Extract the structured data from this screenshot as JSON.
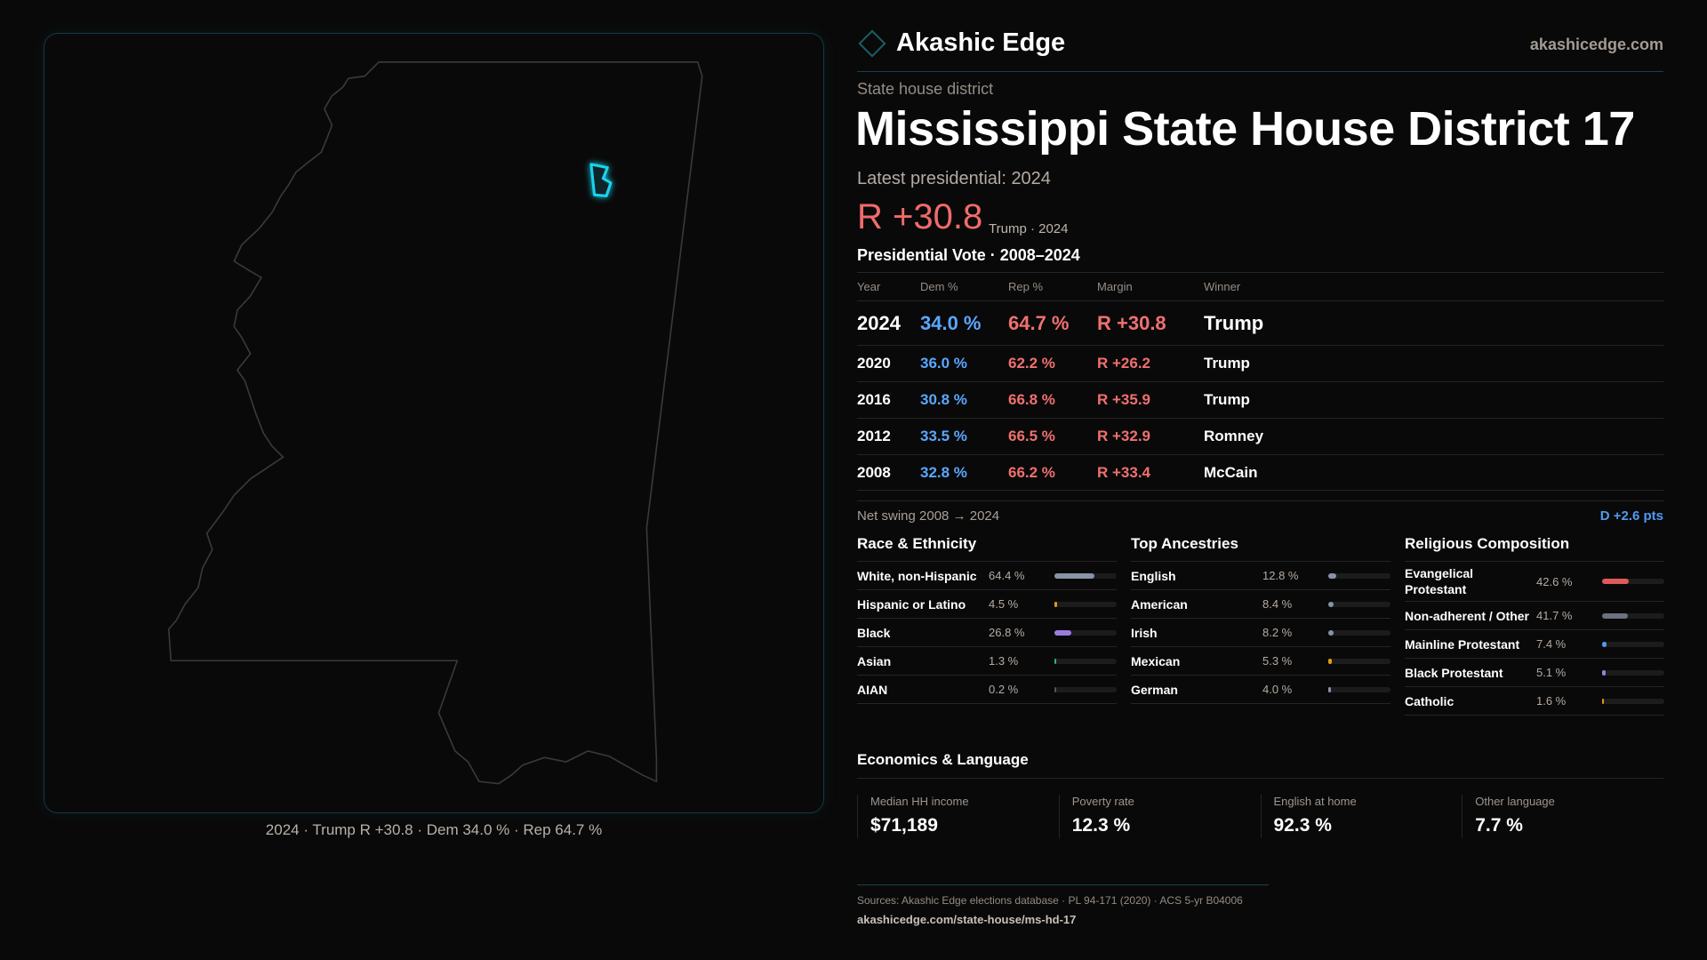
{
  "brand": {
    "name": "Akashic Edge",
    "site": "akashicedge.com",
    "logo_icon": "diamond-outline-icon"
  },
  "district": {
    "kind": "State house district",
    "title": "Mississippi State House District 17",
    "latest": "Latest presidential: 2024",
    "margin": "R +30.8",
    "margin_sub": "Trump · 2024"
  },
  "map": {
    "caption": "2024 · Trump R +30.8 · Dem 34.0 % · Rep 64.7 %",
    "highlight_color": "#19d3ee"
  },
  "colors": {
    "dem": "#5aa7ff",
    "rep": "#f07070"
  },
  "presidential": {
    "title": "Presidential Vote · 2008–2024",
    "headers": [
      "Year",
      "Dem %",
      "Rep %",
      "Margin",
      "Winner"
    ],
    "rows": [
      {
        "year": "2024",
        "dem": "34.0 %",
        "rep": "64.7 %",
        "margin": "R +30.8",
        "winner": "Trump"
      },
      {
        "year": "2020",
        "dem": "36.0 %",
        "rep": "62.2 %",
        "margin": "R +26.2",
        "winner": "Trump"
      },
      {
        "year": "2016",
        "dem": "30.8 %",
        "rep": "66.8 %",
        "margin": "R +35.9",
        "winner": "Trump"
      },
      {
        "year": "2012",
        "dem": "33.5 %",
        "rep": "66.5 %",
        "margin": "R +32.9",
        "winner": "Romney"
      },
      {
        "year": "2008",
        "dem": "32.8 %",
        "rep": "66.2 %",
        "margin": "R +33.4",
        "winner": "McCain"
      }
    ],
    "swing_label": "Net swing 2008 → 2024",
    "swing_value": "D +2.6 pts"
  },
  "race": {
    "title": "Race & Ethnicity",
    "items": [
      {
        "label": "White, non-Hispanic",
        "value": "64.4 %",
        "pct": 64.4,
        "color": "#8793a6"
      },
      {
        "label": "Hispanic or Latino",
        "value": "4.5 %",
        "pct": 4.5,
        "color": "#e09a1a"
      },
      {
        "label": "Black",
        "value": "26.8 %",
        "pct": 26.8,
        "color": "#9b7de0"
      },
      {
        "label": "Asian",
        "value": "1.3 %",
        "pct": 1.3,
        "color": "#2bb58a"
      },
      {
        "label": "AIAN",
        "value": "0.2 %",
        "pct": 0.2,
        "color": "#555"
      }
    ]
  },
  "ancestry": {
    "title": "Top Ancestries",
    "items": [
      {
        "label": "English",
        "value": "12.8 %",
        "pct": 12.8,
        "color": "#8793a6"
      },
      {
        "label": "American",
        "value": "8.4 %",
        "pct": 8.4,
        "color": "#8793a6"
      },
      {
        "label": "Irish",
        "value": "8.2 %",
        "pct": 8.2,
        "color": "#8793a6"
      },
      {
        "label": "Mexican",
        "value": "5.3 %",
        "pct": 5.3,
        "color": "#e09a1a"
      },
      {
        "label": "German",
        "value": "4.0 %",
        "pct": 4.0,
        "color": "#8793a6"
      }
    ]
  },
  "religion": {
    "title": "Religious Composition",
    "items": [
      {
        "label": "Evangelical Protestant",
        "value": "42.6 %",
        "pct": 42.6,
        "color": "#e05a5a"
      },
      {
        "label": "Non-adherent / Other",
        "value": "41.7 %",
        "pct": 41.7,
        "color": "#6b7180"
      },
      {
        "label": "Mainline Protestant",
        "value": "7.4 %",
        "pct": 7.4,
        "color": "#4f9bf0"
      },
      {
        "label": "Black Protestant",
        "value": "5.1 %",
        "pct": 5.1,
        "color": "#9b7de0"
      },
      {
        "label": "Catholic",
        "value": "1.6 %",
        "pct": 1.6,
        "color": "#e09a1a"
      }
    ]
  },
  "economics": {
    "title": "Economics & Language",
    "cards": [
      {
        "label": "Median HH income",
        "value": "$71,189"
      },
      {
        "label": "Poverty rate",
        "value": "12.3 %"
      },
      {
        "label": "English at home",
        "value": "92.3 %"
      },
      {
        "label": "Other language",
        "value": "7.7 %"
      }
    ]
  },
  "footer": {
    "sources": "Sources: Akashic Edge elections database · PL 94-171 (2020) · ACS 5-yr B04006",
    "url": "akashicedge.com/state-house/ms-hd-17"
  }
}
